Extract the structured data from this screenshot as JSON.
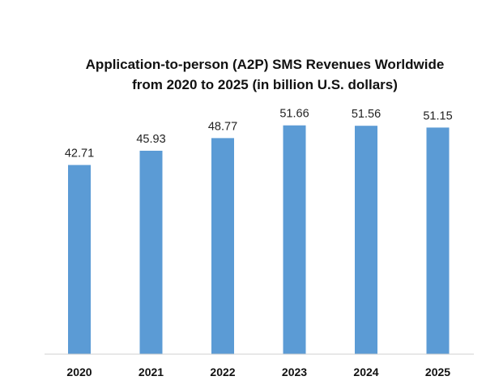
{
  "chart_data": {
    "type": "bar",
    "title": "Application-to-person (A2P) SMS Revenues Worldwide from 2020 to 2025 (in billion U.S. dollars)",
    "title_lines": [
      "Application-to-person (A2P) SMS Revenues Worldwide",
      "from 2020 to 2025 (in billion U.S. dollars)"
    ],
    "categories": [
      "2020",
      "2021",
      "2022",
      "2023",
      "2024",
      "2025"
    ],
    "values": [
      42.71,
      45.93,
      48.77,
      51.66,
      51.56,
      51.15
    ],
    "data_labels": [
      "42.71",
      "45.93",
      "48.77",
      "51.66",
      "51.56",
      "51.15"
    ],
    "xlabel": "",
    "ylabel": "",
    "ylim": [
      0,
      58
    ],
    "grid": false,
    "legend": "none",
    "bar_color": "#5b9bd5",
    "axis_color": "#d0d0d0"
  }
}
